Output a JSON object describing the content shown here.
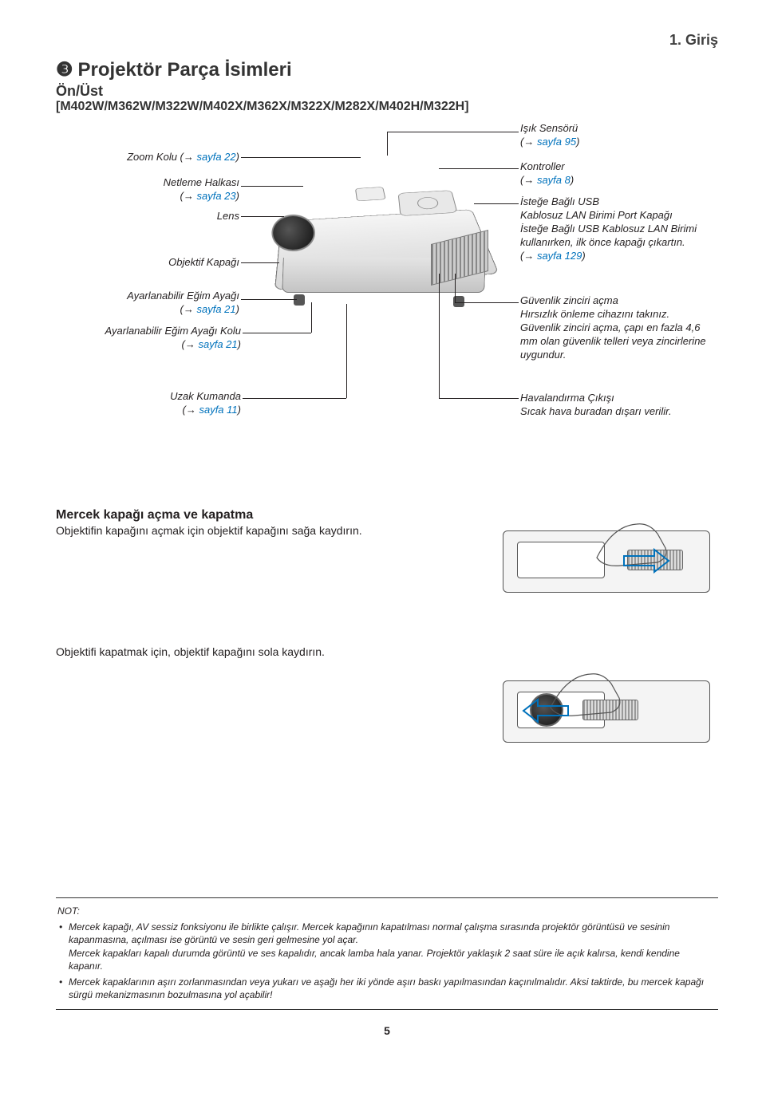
{
  "chapter": "1. Giriş",
  "section": {
    "number": "❸",
    "title": "Projektör Parça İsimleri",
    "sub": "Ön/Üst",
    "models": "[M402W/M362W/M322W/M402X/M362X/M322X/M282X/M402H/M322H]"
  },
  "callouts": {
    "left": {
      "zoom": {
        "label": "Zoom Kolu (→ ",
        "page": "sayfa 22",
        "suffix": ")"
      },
      "focus": {
        "label": "Netleme Halkası",
        "page_prefix": "(→ ",
        "page": "sayfa 23",
        "suffix": ")"
      },
      "lens": "Lens",
      "lenscap": "Objektif Kapağı",
      "tiltfoot": {
        "label": "Ayarlanabilir Eğim Ayağı",
        "page_prefix": "(→ ",
        "page": "sayfa 21",
        "suffix": ")"
      },
      "tiltlever": {
        "label": "Ayarlanabilir Eğim Ayağı Kolu",
        "page_prefix": "(→ ",
        "page": "sayfa 21",
        "suffix": ")"
      },
      "remote": {
        "label": "Uzak Kumanda",
        "page_prefix": "(→ ",
        "page": "sayfa 11",
        "suffix": ")"
      }
    },
    "right": {
      "lightsensor": {
        "label": "Işık Sensörü",
        "page_prefix": "(→ ",
        "page": "sayfa 95",
        "suffix": ")"
      },
      "controls": {
        "label": "Kontroller",
        "page_prefix": "(→ ",
        "page": "sayfa 8",
        "suffix": ")"
      },
      "usbcap": {
        "line1": "İsteğe Bağlı USB",
        "line2": "Kablosuz LAN Birimi Port Kapağı",
        "line3": "İsteğe Bağlı USB Kablosuz LAN Birimi kullanırken, ilk önce kapağı çıkartın.",
        "page_prefix": "(→ ",
        "page": "sayfa 129",
        "suffix": ")"
      },
      "security": {
        "line1": "Güvenlik zinciri açma",
        "line2": "Hırsızlık önleme cihazını takınız.",
        "line3": "Güvenlik zinciri açma, çapı en fazla 4,6 mm olan güvenlik telleri veya zincirlerine uygundur."
      },
      "exhaust": {
        "line1": "Havalandırma Çıkışı",
        "line2": "Sıcak hava buradan dışarı verilir."
      }
    }
  },
  "lenscap_section": {
    "heading": "Mercek kapağı açma ve kapatma",
    "open_text": "Objektifin kapağını açmak için objektif kapağını sağa kaydırın.",
    "close_text": "Objektifi kapatmak için, objektif kapağını sola kaydırın."
  },
  "note": {
    "label": "NOT:",
    "items": [
      "Mercek kapağı, AV sessiz fonksiyonu ile birlikte çalışır. Mercek kapağının kapatılması normal çalışma sırasında projektör görüntüsü ve sesinin kapanmasına, açılması ise görüntü ve sesin geri gelmesine yol açar.\nMercek kapakları kapalı durumda görüntü ve ses kapalıdır, ancak lamba hala yanar. Projektör yaklaşık 2 saat süre ile açık kalırsa, kendi kendine kapanır.",
      "Mercek kapaklarının aşırı zorlanmasından veya yukarı ve aşağı her iki yönde aşırı baskı yapılmasından kaçınılmalıdır. Aksi taktirde, bu mercek kapağı sürgü mekanizmasının bozulmasına yol açabilir!"
    ]
  },
  "page_number": "5"
}
